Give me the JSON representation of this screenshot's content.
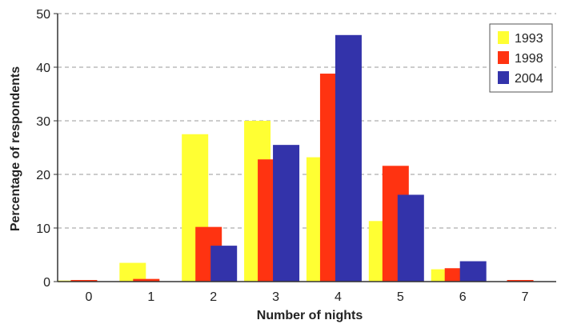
{
  "chart_data": {
    "type": "bar",
    "categories": [
      "0",
      "1",
      "2",
      "3",
      "4",
      "5",
      "6",
      "7"
    ],
    "series": [
      {
        "name": "1993",
        "color": "#ffff33",
        "values": [
          0.2,
          3.5,
          27.5,
          30,
          23.2,
          11.3,
          2.3,
          0
        ]
      },
      {
        "name": "1998",
        "color": "#ff3311",
        "values": [
          0.3,
          0.5,
          10.2,
          22.8,
          38.8,
          21.6,
          2.5,
          0.3
        ]
      },
      {
        "name": "2004",
        "color": "#3333aa",
        "values": [
          0,
          0,
          6.7,
          25.5,
          46,
          16.2,
          3.8,
          0
        ]
      }
    ],
    "xlabel": "Number of nights",
    "ylabel": "Percentage of respondents",
    "ylim": [
      0,
      50
    ],
    "yticks": [
      0,
      10,
      20,
      30,
      40,
      50
    ],
    "grid": true,
    "legend_position": "top-right"
  }
}
